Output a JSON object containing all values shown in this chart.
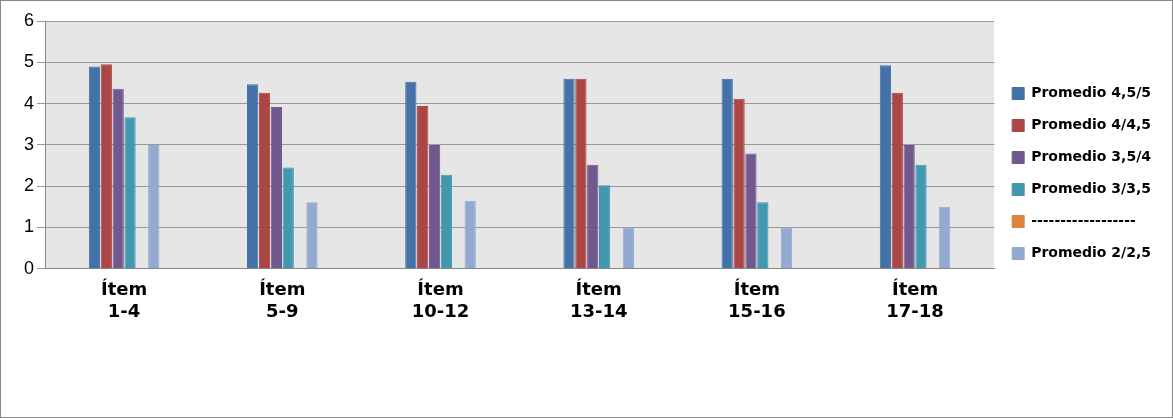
{
  "chart_data": {
    "type": "bar",
    "categories": [
      "Ítem 1-4",
      "Ítem 5-9",
      "Ítem 10-12",
      "Ítem 13-14",
      "Ítem 15-16",
      "Ítem 17-18"
    ],
    "series": [
      {
        "name": "Promedio 4,5/5",
        "color": "#4472a8",
        "values": [
          4.9,
          4.47,
          4.53,
          4.6,
          4.6,
          4.93
        ]
      },
      {
        "name": "Promedio 4/4,5",
        "color": "#aa4643",
        "values": [
          4.95,
          4.26,
          3.94,
          4.6,
          4.12,
          4.26
        ]
      },
      {
        "name": "Promedio 3,5/4",
        "color": "#71588f",
        "values": [
          4.36,
          3.92,
          3.0,
          2.52,
          2.79,
          3.0
        ]
      },
      {
        "name": "Promedio 3/3,5",
        "color": "#4198af",
        "values": [
          3.67,
          2.45,
          2.28,
          2.02,
          1.61,
          2.52
        ]
      },
      {
        "name": "------------------",
        "color": "#db843d",
        "values": [
          null,
          null,
          null,
          null,
          null,
          null
        ]
      },
      {
        "name": "Promedio 2/2,5",
        "color": "#93a9cf",
        "values": [
          3.0,
          1.61,
          1.65,
          1.0,
          1.0,
          1.5
        ]
      }
    ],
    "ylim": [
      0,
      6
    ],
    "yticks": [
      0,
      1,
      2,
      3,
      4,
      5,
      6
    ],
    "grid": "y",
    "legend": "right"
  }
}
